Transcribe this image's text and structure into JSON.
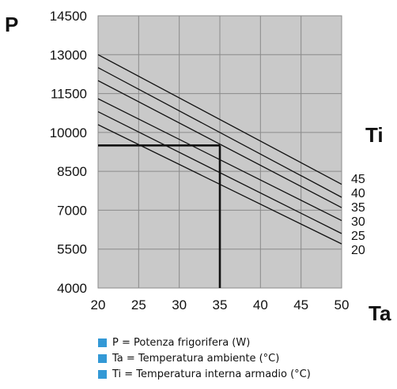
{
  "chart_data": {
    "type": "line",
    "y_axis_letter": "P",
    "x_axis_letter": "Ta",
    "series_axis_letter": "Ti",
    "x_ticks": [
      20,
      25,
      30,
      35,
      40,
      45,
      50
    ],
    "y_ticks": [
      4000,
      5500,
      7000,
      8500,
      10000,
      11500,
      13000,
      14500
    ],
    "xlim": [
      20,
      50
    ],
    "ylim": [
      4000,
      14500
    ],
    "grid": true,
    "series": [
      {
        "name": "45",
        "x": [
          20,
          50
        ],
        "y": [
          13000,
          8000
        ]
      },
      {
        "name": "40",
        "x": [
          20,
          50
        ],
        "y": [
          12500,
          7500
        ]
      },
      {
        "name": "35",
        "x": [
          20,
          50
        ],
        "y": [
          12000,
          7100
        ]
      },
      {
        "name": "30",
        "x": [
          20,
          50
        ],
        "y": [
          11300,
          6600
        ]
      },
      {
        "name": "25",
        "x": [
          20,
          50
        ],
        "y": [
          10800,
          6100
        ]
      },
      {
        "name": "20",
        "x": [
          20,
          50
        ],
        "y": [
          10300,
          5700
        ]
      }
    ],
    "marker": {
      "x": 35,
      "y": 9500
    },
    "legend": [
      "P = Potenza frigorifera (W)",
      "Ta = Temperatura ambiente (°C)",
      "Ti = Temperatura interna armadio (°C)"
    ],
    "colors": {
      "plot_background": "#c9c9c9",
      "grid": "#8a8a8a",
      "lines": "#111111",
      "legend_marker": "#3399d6"
    }
  }
}
